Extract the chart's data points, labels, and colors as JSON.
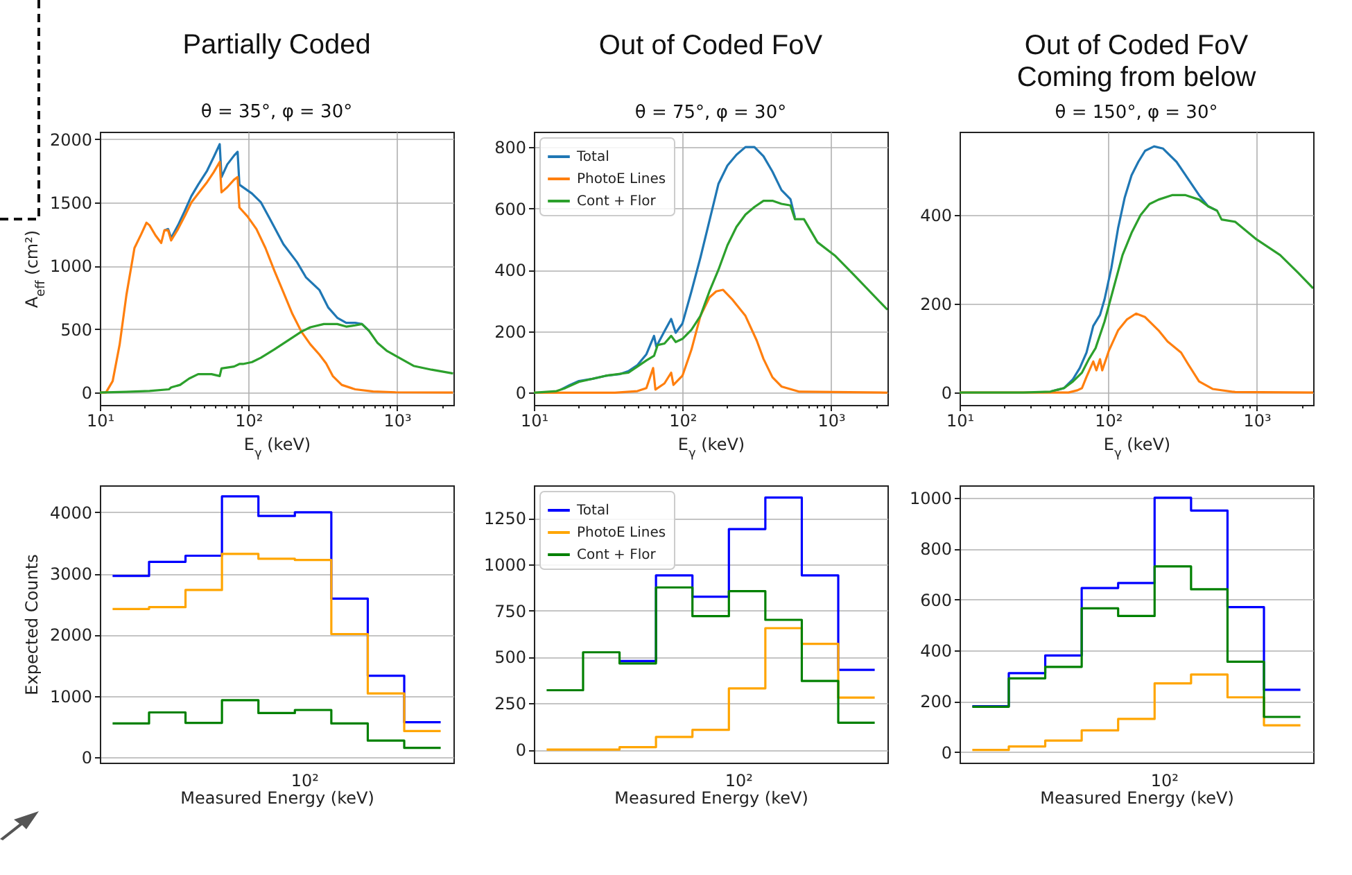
{
  "chart_data": [
    {
      "type": "line",
      "title": "Partially Coded",
      "subtitle": "θ = 35°, φ = 30°",
      "xlabel": "E$_{γ}$ (keV)",
      "ylabel": "A$_{eff}$ (cm²)",
      "log": "x",
      "grid": true,
      "xlim": [
        10,
        2400
      ],
      "ylim": [
        -98,
        2058
      ],
      "xticks": [
        {
          "value": 10,
          "label": "10¹"
        },
        {
          "value": 20,
          "label": null
        },
        {
          "value": 30,
          "label": null
        },
        {
          "value": 40,
          "label": null
        },
        {
          "value": 50,
          "label": null
        },
        {
          "value": 60,
          "label": null
        },
        {
          "value": 70,
          "label": null
        },
        {
          "value": 80,
          "label": null
        },
        {
          "value": 90,
          "label": null
        },
        {
          "value": 100,
          "label": "10²"
        },
        {
          "value": 200,
          "label": null
        },
        {
          "value": 300,
          "label": null
        },
        {
          "value": 400,
          "label": null
        },
        {
          "value": 500,
          "label": null
        },
        {
          "value": 600,
          "label": null
        },
        {
          "value": 700,
          "label": null
        },
        {
          "value": 800,
          "label": null
        },
        {
          "value": 900,
          "label": null
        },
        {
          "value": 1000,
          "label": "10³"
        },
        {
          "value": 2000,
          "label": null
        }
      ],
      "yticks": [
        0,
        500,
        1000,
        1500,
        2000
      ],
      "series": [
        {
          "color": "#1f77b4",
          "x": [
            27.2,
            28.8,
            30.2,
            33.6,
            37.2,
            41.3,
            45.9,
            52.7,
            58.5,
            64.1,
            65.9,
            72.1,
            80.1,
            84.6,
            87.0,
            105.7,
            121.5,
            139.6,
            172.1,
            212.1,
            243.7,
            300.2,
            345.1,
            396.5,
            455.6,
            523.6,
            581.2,
            645.2
          ],
          "values": [
            1280,
            1290,
            1220,
            1320,
            1430,
            1550,
            1640,
            1750,
            1860,
            1960,
            1700,
            1800,
            1870,
            1900,
            1640,
            1570,
            1500,
            1370,
            1170,
            1030,
            910,
            810,
            670,
            590,
            550,
            550,
            540,
            490
          ]
        },
        {
          "color": "#ff7f0e",
          "x": [
            10,
            11.0,
            12.2,
            13.6,
            15.1,
            17.1,
            19.0,
            20.6,
            21.6,
            23.7,
            25.9,
            27.2,
            28.8,
            30.2,
            33.6,
            37.2,
            41.3,
            45.9,
            52.7,
            58.5,
            64.1,
            65.9,
            72.1,
            80.1,
            84.6,
            87.0,
            98.6,
            113.3,
            130.3,
            149.7,
            172.1,
            197.8,
            227.3,
            261.2,
            300.2,
            333.3,
            369.8,
            425.0,
            523.6,
            691.6,
            979.3,
            2386
          ],
          "values": [
            0,
            0,
            90,
            380,
            770,
            1140,
            1250,
            1340,
            1320,
            1240,
            1180,
            1280,
            1280,
            1200,
            1290,
            1390,
            1500,
            1570,
            1660,
            1740,
            1820,
            1580,
            1620,
            1680,
            1700,
            1460,
            1390,
            1290,
            1140,
            960,
            790,
            620,
            480,
            380,
            300,
            230,
            130,
            60,
            25,
            8,
            2,
            0
          ]
        },
        {
          "color": "#2ca02c",
          "x": [
            10,
            15.1,
            21.6,
            29.2,
            30.2,
            34.7,
            39.9,
            45.9,
            56.5,
            64.1,
            65.9,
            80.1,
            87.0,
            92.0,
            105.7,
            121.5,
            149.7,
            184.5,
            227.3,
            261.2,
            321.9,
            396.5,
            455.6,
            523.6,
            581.2,
            645.2,
            741.5,
            852.2,
            979.3,
            1294,
            1709,
            2386
          ],
          "values": [
            0,
            5,
            12,
            25,
            40,
            60,
            110,
            145,
            145,
            130,
            190,
            205,
            225,
            225,
            240,
            275,
            340,
            410,
            480,
            515,
            540,
            540,
            520,
            530,
            540,
            490,
            390,
            330,
            290,
            210,
            180,
            150
          ]
        }
      ]
    },
    {
      "type": "line",
      "title": "Out of Coded FoV",
      "subtitle": "θ = 75°, φ = 30°",
      "xlabel": "E$_{γ}$ (keV)",
      "log": "x",
      "grid": true,
      "legend": "top left",
      "xlim": [
        10,
        2400
      ],
      "ylim": [
        -40,
        850
      ],
      "xticks": [
        {
          "value": 10,
          "label": "10¹"
        },
        {
          "value": 20,
          "label": null
        },
        {
          "value": 30,
          "label": null
        },
        {
          "value": 40,
          "label": null
        },
        {
          "value": 50,
          "label": null
        },
        {
          "value": 60,
          "label": null
        },
        {
          "value": 70,
          "label": null
        },
        {
          "value": 80,
          "label": null
        },
        {
          "value": 90,
          "label": null
        },
        {
          "value": 100,
          "label": "10²"
        },
        {
          "value": 200,
          "label": null
        },
        {
          "value": 300,
          "label": null
        },
        {
          "value": 400,
          "label": null
        },
        {
          "value": 500,
          "label": null
        },
        {
          "value": 600,
          "label": null
        },
        {
          "value": 700,
          "label": null
        },
        {
          "value": 800,
          "label": null
        },
        {
          "value": 900,
          "label": null
        },
        {
          "value": 1000,
          "label": "10³"
        },
        {
          "value": 2000,
          "label": null
        }
      ],
      "yticks": [
        0,
        200,
        400,
        600,
        800
      ],
      "series": [
        {
          "name": "Total",
          "color": "#1f77b4",
          "x": [
            15.2,
            17.5,
            20.1,
            24.8,
            30.5,
            37.7,
            43.3,
            49.8,
            57.2,
            64.4,
            66.7,
            75.7,
            84.0,
            90.1,
            100,
            115.0,
            132.2,
            152.0,
            174.7,
            200.9,
            231.0,
            265.6,
            305.3,
            351.3,
            403.7,
            464.2,
            533.7,
            572.2
          ],
          "values": [
            10,
            25,
            38,
            45,
            55,
            60,
            70,
            90,
            125,
            185,
            150,
            200,
            240,
            195,
            225,
            330,
            440,
            560,
            680,
            740,
            775,
            800,
            800,
            770,
            720,
            660,
            630,
            570
          ]
        },
        {
          "name": "PhotoE Lines",
          "color": "#ff7f0e",
          "x": [
            10,
            35.1,
            49.8,
            57.2,
            63.5,
            65.8,
            75.7,
            84.0,
            87.0,
            100,
            115.0,
            132.2,
            152.0,
            168.8,
            187.4,
            215.4,
            265.6,
            316.2,
            351.3,
            403.7,
            464.2,
            613.6,
            2400
          ],
          "values": [
            0,
            0,
            5,
            15,
            80,
            10,
            30,
            65,
            25,
            55,
            140,
            250,
            310,
            330,
            335,
            305,
            250,
            170,
            110,
            50,
            20,
            3,
            0
          ]
        },
        {
          "name": "Cont + Flor",
          "color": "#2ca02c",
          "x": [
            10,
            14.2,
            16.3,
            20.1,
            30.5,
            43.3,
            49.8,
            57.2,
            64.4,
            68.1,
            75.7,
            84.0,
            90.1,
            100,
            115.0,
            132.2,
            152.0,
            174.7,
            200.9,
            231.0,
            265.6,
            305.3,
            351.3,
            403.7,
            464.2,
            533.7,
            572.2,
            658.0,
            811.3,
            1072,
            1418,
            2400
          ],
          "values": [
            0,
            5,
            15,
            35,
            55,
            65,
            85,
            105,
            120,
            155,
            160,
            185,
            165,
            175,
            205,
            250,
            330,
            400,
            480,
            540,
            580,
            605,
            625,
            625,
            615,
            610,
            565,
            565,
            490,
            445,
            385,
            270
          ]
        }
      ]
    },
    {
      "type": "line",
      "title": "Out of Coded FoV\nComing from below",
      "subtitle": "θ = 150°, φ = 30°",
      "xlabel": "E$_{γ}$ (keV)",
      "log": "x",
      "grid": true,
      "xlim": [
        10,
        2400
      ],
      "ylim": [
        -28,
        588
      ],
      "xticks": [
        {
          "value": 10,
          "label": "10¹"
        },
        {
          "value": 20,
          "label": null
        },
        {
          "value": 30,
          "label": null
        },
        {
          "value": 40,
          "label": null
        },
        {
          "value": 50,
          "label": null
        },
        {
          "value": 60,
          "label": null
        },
        {
          "value": 70,
          "label": null
        },
        {
          "value": 80,
          "label": null
        },
        {
          "value": 90,
          "label": null
        },
        {
          "value": 100,
          "label": "10²"
        },
        {
          "value": 200,
          "label": null
        },
        {
          "value": 300,
          "label": null
        },
        {
          "value": 400,
          "label": null
        },
        {
          "value": 500,
          "label": null
        },
        {
          "value": 600,
          "label": null
        },
        {
          "value": 700,
          "label": null
        },
        {
          "value": 800,
          "label": null
        },
        {
          "value": 900,
          "label": null
        },
        {
          "value": 1000,
          "label": "10³"
        },
        {
          "value": 2000,
          "label": null
        }
      ],
      "yticks": [
        0,
        200,
        400
      ],
      "series": [
        {
          "color": "#1f77b4",
          "x": [
            40.9,
            50.5,
            58.0,
            64.4,
            71.5,
            79.4,
            88.2,
            94.6,
            105.0,
            116.6,
            129.4,
            143.8,
            159.6,
            177.3,
            203.8,
            234.3,
            288.8,
            332.1,
            409.4,
            470.8,
            541.2
          ],
          "values": [
            2,
            10,
            30,
            55,
            90,
            150,
            175,
            210,
            280,
            370,
            440,
            490,
            520,
            545,
            555,
            550,
            520,
            490,
            445,
            420,
            410
          ]
        },
        {
          "color": "#ff7f0e",
          "x": [
            10,
            54.1,
            62.2,
            66.7,
            71.5,
            79.4,
            83.4,
            88.2,
            91.3,
            101.4,
            116.6,
            134.1,
            154.2,
            177.3,
            218.5,
            251.2,
            309.7,
            343.9,
            409.4,
            504.7,
            715.3,
            2400
          ],
          "values": [
            0,
            0,
            5,
            10,
            35,
            70,
            50,
            75,
            50,
            95,
            140,
            165,
            178,
            170,
            140,
            115,
            90,
            65,
            25,
            8,
            1,
            0
          ]
        },
        {
          "color": "#2ca02c",
          "x": [
            10,
            26.9,
            40.9,
            50.5,
            58.0,
            66.7,
            74.1,
            82.3,
            94.6,
            108.7,
            125.0,
            143.8,
            165.3,
            190.0,
            218.5,
            269.4,
            332.1,
            409.4,
            470.8,
            541.2,
            580.3,
            715.3,
            1000,
            1438,
            1900,
            2400
          ],
          "values": [
            0,
            0,
            2,
            10,
            25,
            45,
            75,
            100,
            160,
            235,
            310,
            360,
            400,
            425,
            435,
            445,
            445,
            435,
            420,
            410,
            390,
            385,
            345,
            310,
            270,
            235
          ]
        }
      ]
    },
    {
      "type": "step",
      "xlabel": "Measured Energy (keV)",
      "ylabel": "Expected Counts",
      "grid": "y",
      "annotations": [
        "10²"
      ],
      "ylim": [
        -91,
        4440
      ],
      "yticks": [
        0,
        1000,
        2000,
        3000,
        4000
      ],
      "categories": [
        null,
        null,
        null,
        null,
        null,
        null,
        null,
        null,
        null,
        null
      ],
      "series": [
        {
          "color": "#0000ff",
          "values": [
            2960,
            3190,
            3290,
            4260,
            3940,
            4000,
            2590,
            1330,
            570,
            570
          ]
        },
        {
          "color": "#ffa500",
          "values": [
            2420,
            2450,
            2730,
            3320,
            3240,
            3220,
            2010,
            1040,
            425,
            425
          ]
        },
        {
          "color": "#008000",
          "values": [
            550,
            730,
            560,
            930,
            720,
            770,
            550,
            270,
            150,
            150
          ]
        }
      ]
    },
    {
      "type": "step",
      "xlabel": "Measured Energy (keV)",
      "grid": "y",
      "legend": "top left",
      "annotations": [
        "10²"
      ],
      "ylim": [
        -71,
        1426
      ],
      "yticks": [
        0,
        250,
        500,
        750,
        1000,
        1250
      ],
      "categories": [
        null,
        null,
        null,
        null,
        null,
        null,
        null,
        null,
        null,
        null
      ],
      "series": [
        {
          "name": "Total",
          "color": "#0000ff",
          "values": [
            null,
            null,
            478,
            940,
            825,
            1190,
            1360,
            940,
            430,
            430
          ]
        },
        {
          "name": "PhotoE Lines",
          "color": "#ffa500",
          "values": [
            0,
            0,
            13,
            68,
            106,
            330,
            655,
            570,
            280,
            280
          ]
        },
        {
          "name": "Cont + Flor",
          "color": "#008000",
          "values": [
            320,
            525,
            465,
            875,
            720,
            855,
            700,
            370,
            145,
            145
          ]
        }
      ]
    },
    {
      "type": "step",
      "xlabel": "Measured Energy (keV)",
      "grid": "y",
      "annotations": [
        "10²"
      ],
      "ylim": [
        -42,
        1049
      ],
      "yticks": [
        0,
        200,
        400,
        600,
        800,
        1000
      ],
      "categories": [
        null,
        null,
        null,
        null,
        null,
        null,
        null,
        null,
        null,
        null
      ],
      "series": [
        {
          "color": "#0000ff",
          "values": [
            180,
            310,
            380,
            645,
            665,
            1000,
            950,
            570,
            245,
            245
          ]
        },
        {
          "color": "#ffa500",
          "values": [
            8,
            22,
            45,
            85,
            130,
            270,
            305,
            215,
            105,
            105
          ]
        },
        {
          "color": "#008000",
          "values": [
            178,
            290,
            335,
            565,
            535,
            730,
            640,
            355,
            138,
            138
          ]
        }
      ]
    }
  ]
}
